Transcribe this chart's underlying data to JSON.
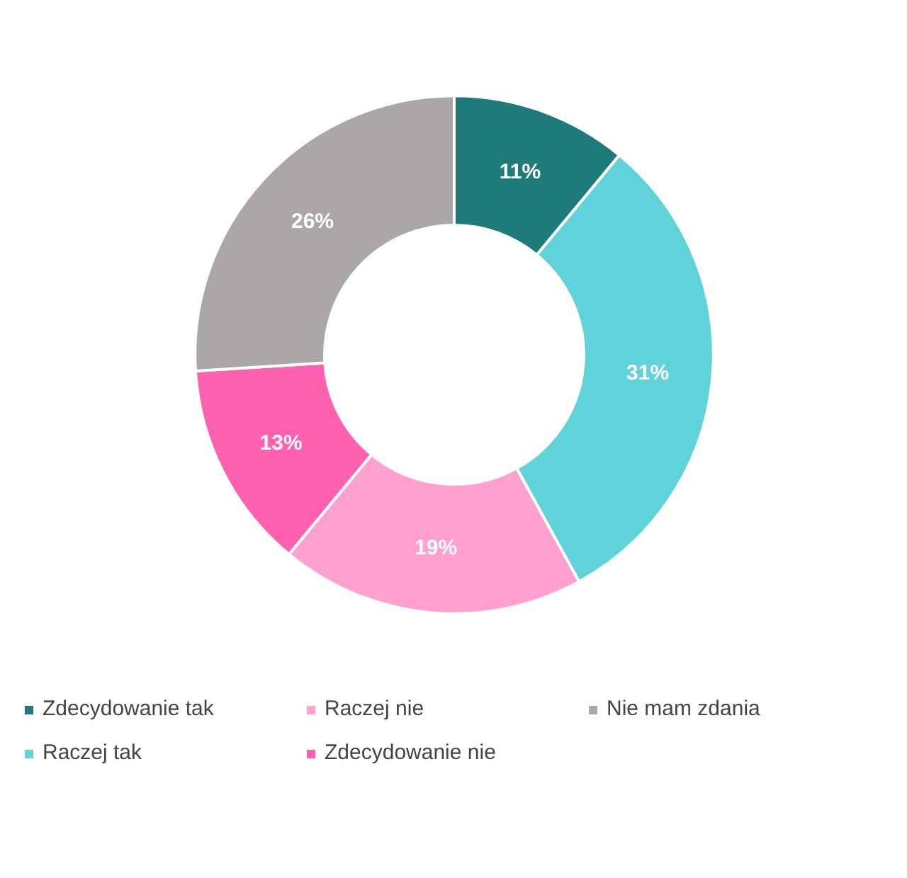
{
  "chart_data": {
    "type": "donut",
    "categories": [
      "Zdecydowanie tak",
      "Raczej tak",
      "Raczej nie",
      "Zdecydowanie nie",
      "Nie mam zdania"
    ],
    "values": [
      11,
      31,
      19,
      13,
      26
    ],
    "colors": [
      "#1f7a7a",
      "#5fd3d9",
      "#ffa0d0",
      "#ff60b0",
      "#aba7a6"
    ],
    "value_labels": [
      "11%",
      "31%",
      "19%",
      "13%",
      "26%"
    ],
    "legend": "bottom"
  }
}
